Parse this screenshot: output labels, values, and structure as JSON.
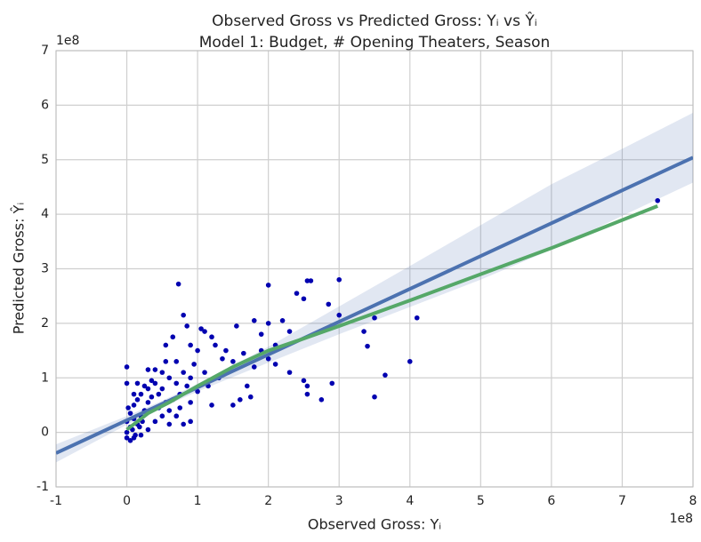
{
  "chart_data": {
    "type": "scatter",
    "title": "Observed Gross vs Predicted Gross: Yᵢ vs Ŷᵢ",
    "subtitle": "Model 1: Budget, # Opening Theaters, Season",
    "x_label": "Observed Gross: Yᵢ",
    "y_label": "Predicted Gross: Ŷᵢ",
    "x_offset_label": "1e8",
    "y_offset_label": "1e8",
    "xlim": [
      -1,
      8
    ],
    "ylim": [
      -1,
      7
    ],
    "xticks": [
      -1,
      0,
      1,
      2,
      3,
      4,
      5,
      6,
      7,
      8
    ],
    "yticks": [
      -1,
      0,
      1,
      2,
      3,
      4,
      5,
      6,
      7
    ],
    "grid": true,
    "points": {
      "color": "#0000b0",
      "x": [
        0.73,
        2.0,
        2.55,
        2.6,
        3.0,
        2.4,
        2.5,
        2.85,
        3.0,
        3.5,
        4.1,
        3.35,
        3.4,
        3.65,
        4.0,
        3.5,
        2.75,
        2.55,
        2.5,
        2.55,
        2.9,
        7.5,
        2.0,
        1.8,
        1.9,
        2.3,
        2.2,
        2.1,
        2.3,
        2.1,
        1.7,
        1.75,
        1.5,
        1.6,
        1.25,
        1.55,
        1.2,
        1.1,
        0.8,
        1.05,
        0.85,
        0.65,
        0.55,
        0.55,
        0.4,
        0.3,
        0.0,
        0.0,
        1.8,
        1.4,
        1.0,
        0.9,
        1.3,
        1.2,
        0.9,
        0.7,
        0.8,
        0.9,
        1.1,
        1.0,
        0.5,
        0.4,
        0.3,
        0.2,
        0.1,
        0.05,
        0.0,
        0.0,
        0.0,
        0.05,
        0.1,
        0.15,
        0.2,
        0.3,
        0.35,
        0.4,
        0.5,
        0.6,
        0.7,
        0.8,
        0.9,
        0.25,
        0.45,
        0.55,
        0.65,
        0.75,
        0.2,
        0.15,
        0.1,
        0.05,
        0.3,
        0.6,
        1.5,
        1.65,
        0.95,
        1.15,
        0.35,
        0.25,
        0.15,
        0.1,
        0.45,
        0.02,
        0.08,
        0.12,
        0.18,
        0.22,
        0.5,
        0.7,
        0.85,
        1.35,
        0.6,
        0.75,
        2.0,
        1.9
      ],
      "y": [
        2.72,
        2.7,
        2.78,
        2.78,
        2.8,
        2.55,
        2.45,
        2.35,
        2.15,
        2.1,
        2.1,
        1.85,
        1.58,
        1.05,
        1.3,
        0.65,
        0.6,
        0.7,
        0.95,
        0.85,
        0.9,
        4.25,
        2.0,
        2.05,
        1.8,
        1.85,
        2.05,
        1.6,
        1.1,
        1.25,
        0.85,
        0.65,
        0.5,
        0.6,
        1.6,
        1.95,
        1.75,
        1.85,
        2.15,
        1.9,
        1.95,
        1.75,
        1.6,
        1.3,
        1.15,
        1.15,
        1.2,
        0.9,
        1.2,
        1.5,
        1.5,
        1.6,
        1.0,
        0.5,
        0.55,
        0.3,
        0.15,
        0.2,
        1.1,
        0.75,
        0.3,
        0.2,
        0.05,
        -0.05,
        -0.1,
        -0.15,
        -0.1,
        0.0,
        0.2,
        0.35,
        0.5,
        0.6,
        0.7,
        0.8,
        0.65,
        0.9,
        0.8,
        1.0,
        0.9,
        1.1,
        1.0,
        0.4,
        0.45,
        0.55,
        0.6,
        0.7,
        0.3,
        0.15,
        0.25,
        0.1,
        0.55,
        0.4,
        1.3,
        1.45,
        1.25,
        0.85,
        0.95,
        0.85,
        0.9,
        0.7,
        0.7,
        0.45,
        0.05,
        -0.05,
        0.1,
        0.2,
        1.1,
        1.3,
        0.85,
        1.35,
        0.15,
        0.45,
        1.35,
        1.5
      ]
    },
    "ci": {
      "color": "#4c72b0",
      "x": [
        -1,
        0,
        0.5,
        1,
        2,
        3,
        4,
        5,
        6,
        7,
        8
      ],
      "lower": [
        -0.55,
        0.14,
        0.46,
        0.75,
        1.28,
        1.8,
        2.3,
        2.8,
        3.35,
        3.97,
        4.58
      ],
      "upper": [
        -0.22,
        0.3,
        0.58,
        0.89,
        1.57,
        2.31,
        3.05,
        3.8,
        4.55,
        5.2,
        5.86
      ]
    },
    "fit": {
      "color": "#4c72b0",
      "x": [
        -1,
        8
      ],
      "y": [
        -0.38,
        5.04
      ]
    },
    "lowess": {
      "color": "#55a868",
      "x": [
        0,
        0.3,
        0.6,
        1,
        1.5,
        2,
        2.5,
        3,
        4,
        5,
        6,
        7.5
      ],
      "y": [
        0.05,
        0.35,
        0.55,
        0.85,
        1.2,
        1.5,
        1.72,
        1.95,
        2.42,
        2.9,
        3.38,
        4.15
      ]
    }
  }
}
